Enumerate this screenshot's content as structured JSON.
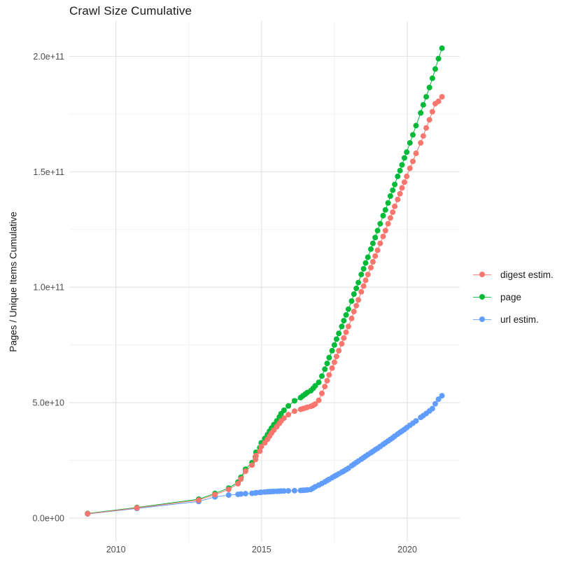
{
  "figure": {
    "title": "Crawl Size Cumulative",
    "y_axis_title": "Pages / Unique Items Cumulative",
    "x_tick_labels": [
      "2010",
      "2015",
      "2020"
    ],
    "y_tick_labels": [
      "0.0e+00",
      "5.0e+10",
      "1.0e+11",
      "1.5e+11",
      "2.0e+11"
    ]
  },
  "chart_data": {
    "type": "scatter",
    "connected": true,
    "title": "Crawl Size Cumulative",
    "xlabel": "",
    "ylabel": "Pages / Unique Items Cumulative",
    "x_unit": "crawl date (decimal year)",
    "value_unit": "cumulative items in billions (1e9)",
    "xlim": [
      2008.4,
      2021.8
    ],
    "ylim": [
      0,
      210000000000.0
    ],
    "x_ticks_major": [
      2010,
      2015,
      2020
    ],
    "x_ticks_minor": [
      2012.5,
      2017.5
    ],
    "y_ticks_major_billions": [
      0,
      50,
      100,
      150,
      200
    ],
    "y_ticks_minor_billions": [
      25,
      75,
      125,
      175
    ],
    "grid": true,
    "legend_position": "right",
    "series": [
      {
        "name": "digest estim.",
        "color": "#F8766D",
        "points": [
          [
            2009.03,
            1.9
          ],
          [
            2010.72,
            4.4
          ],
          [
            2012.84,
            7.8
          ],
          [
            2013.4,
            10.2
          ],
          [
            2013.87,
            12.4
          ],
          [
            2014.19,
            14.9
          ],
          [
            2014.29,
            16.9
          ],
          [
            2014.45,
            20.3
          ],
          [
            2014.67,
            23.0
          ],
          [
            2014.79,
            25.4
          ],
          [
            2014.81,
            27.1
          ],
          [
            2014.94,
            29.0
          ],
          [
            2014.99,
            30.9
          ],
          [
            2015.11,
            32.6
          ],
          [
            2015.2,
            34.1
          ],
          [
            2015.27,
            35.5
          ],
          [
            2015.34,
            36.8
          ],
          [
            2015.42,
            38.1
          ],
          [
            2015.52,
            39.6
          ],
          [
            2015.61,
            41.0
          ],
          [
            2015.67,
            42.1
          ],
          [
            2015.77,
            43.3
          ],
          [
            2015.92,
            44.8
          ],
          [
            2016.13,
            46.3
          ],
          [
            2016.34,
            47.1
          ],
          [
            2016.42,
            47.4
          ],
          [
            2016.5,
            47.7
          ],
          [
            2016.57,
            48.0
          ],
          [
            2016.69,
            48.4
          ],
          [
            2016.77,
            48.8
          ],
          [
            2016.84,
            49.4
          ],
          [
            2016.96,
            51.0
          ],
          [
            2017.07,
            54.0
          ],
          [
            2017.17,
            57.0
          ],
          [
            2017.25,
            59.5
          ],
          [
            2017.32,
            62.0
          ],
          [
            2017.42,
            65.0
          ],
          [
            2017.5,
            67.5
          ],
          [
            2017.57,
            70.0
          ],
          [
            2017.65,
            72.5
          ],
          [
            2017.75,
            75.5
          ],
          [
            2017.82,
            78.0
          ],
          [
            2017.9,
            80.5
          ],
          [
            2017.98,
            83.0
          ],
          [
            2018.09,
            86.5
          ],
          [
            2018.17,
            89.5
          ],
          [
            2018.25,
            92.0
          ],
          [
            2018.32,
            94.5
          ],
          [
            2018.42,
            98.0
          ],
          [
            2018.5,
            100.5
          ],
          [
            2018.57,
            103.0
          ],
          [
            2018.65,
            105.5
          ],
          [
            2018.75,
            108.5
          ],
          [
            2018.82,
            111.0
          ],
          [
            2018.9,
            113.5
          ],
          [
            2018.98,
            116.0
          ],
          [
            2019.07,
            119.0
          ],
          [
            2019.17,
            122.0
          ],
          [
            2019.25,
            124.5
          ],
          [
            2019.34,
            127.5
          ],
          [
            2019.42,
            130.0
          ],
          [
            2019.5,
            132.5
          ],
          [
            2019.57,
            135.0
          ],
          [
            2019.67,
            138.0
          ],
          [
            2019.75,
            140.5
          ],
          [
            2019.82,
            143.0
          ],
          [
            2019.9,
            145.5
          ],
          [
            2019.98,
            148.0
          ],
          [
            2020.09,
            151.5
          ],
          [
            2020.19,
            154.5
          ],
          [
            2020.3,
            158.0
          ],
          [
            2020.46,
            162.5
          ],
          [
            2020.55,
            165.5
          ],
          [
            2020.65,
            169.0
          ],
          [
            2020.76,
            172.5
          ],
          [
            2020.86,
            176.0
          ],
          [
            2020.96,
            179.5
          ],
          [
            2021.07,
            180.5
          ],
          [
            2021.19,
            182.5
          ]
        ]
      },
      {
        "name": "page",
        "color": "#00BA38",
        "points": [
          [
            2009.03,
            2.0
          ],
          [
            2010.72,
            4.6
          ],
          [
            2012.84,
            8.2
          ],
          [
            2013.4,
            10.7
          ],
          [
            2013.87,
            13.0
          ],
          [
            2014.19,
            15.6
          ],
          [
            2014.29,
            17.7
          ],
          [
            2014.45,
            21.2
          ],
          [
            2014.67,
            24.0
          ],
          [
            2014.79,
            26.6
          ],
          [
            2014.81,
            28.5
          ],
          [
            2014.94,
            30.5
          ],
          [
            2014.99,
            32.6
          ],
          [
            2015.11,
            34.5
          ],
          [
            2015.2,
            36.1
          ],
          [
            2015.27,
            37.6
          ],
          [
            2015.34,
            39.0
          ],
          [
            2015.42,
            40.5
          ],
          [
            2015.52,
            42.1
          ],
          [
            2015.61,
            43.8
          ],
          [
            2015.67,
            45.2
          ],
          [
            2015.77,
            46.7
          ],
          [
            2015.92,
            48.6
          ],
          [
            2016.13,
            50.8
          ],
          [
            2016.34,
            52.2
          ],
          [
            2016.42,
            53.0
          ],
          [
            2016.5,
            53.7
          ],
          [
            2016.57,
            54.4
          ],
          [
            2016.69,
            55.2
          ],
          [
            2016.77,
            56.2
          ],
          [
            2016.84,
            57.3
          ],
          [
            2016.96,
            58.8
          ],
          [
            2017.07,
            61.5
          ],
          [
            2017.17,
            64.5
          ],
          [
            2017.25,
            67.0
          ],
          [
            2017.32,
            69.5
          ],
          [
            2017.42,
            72.5
          ],
          [
            2017.5,
            75.0
          ],
          [
            2017.57,
            77.5
          ],
          [
            2017.65,
            80.0
          ],
          [
            2017.75,
            83.0
          ],
          [
            2017.82,
            85.5
          ],
          [
            2017.9,
            88.0
          ],
          [
            2017.98,
            90.5
          ],
          [
            2018.09,
            94.0
          ],
          [
            2018.17,
            97.0
          ],
          [
            2018.25,
            99.5
          ],
          [
            2018.32,
            102.0
          ],
          [
            2018.42,
            105.5
          ],
          [
            2018.5,
            108.0
          ],
          [
            2018.57,
            110.5
          ],
          [
            2018.65,
            113.0
          ],
          [
            2018.75,
            116.5
          ],
          [
            2018.82,
            119.0
          ],
          [
            2018.9,
            121.5
          ],
          [
            2018.98,
            124.5
          ],
          [
            2019.07,
            127.5
          ],
          [
            2019.17,
            131.0
          ],
          [
            2019.25,
            133.5
          ],
          [
            2019.34,
            136.5
          ],
          [
            2019.42,
            139.5
          ],
          [
            2019.5,
            142.0
          ],
          [
            2019.57,
            144.5
          ],
          [
            2019.67,
            148.0
          ],
          [
            2019.75,
            150.5
          ],
          [
            2019.82,
            153.0
          ],
          [
            2019.9,
            156.0
          ],
          [
            2019.98,
            158.5
          ],
          [
            2020.09,
            162.5
          ],
          [
            2020.19,
            166.0
          ],
          [
            2020.3,
            170.0
          ],
          [
            2020.46,
            175.5
          ],
          [
            2020.55,
            179.0
          ],
          [
            2020.65,
            182.5
          ],
          [
            2020.76,
            186.5
          ],
          [
            2020.86,
            190.5
          ],
          [
            2020.96,
            194.5
          ],
          [
            2021.07,
            199.0
          ],
          [
            2021.19,
            203.5
          ]
        ]
      },
      {
        "name": "url estim.",
        "color": "#619CFF",
        "points": [
          [
            2009.03,
            1.8
          ],
          [
            2010.72,
            4.2
          ],
          [
            2012.84,
            7.2
          ],
          [
            2013.4,
            9.2
          ],
          [
            2013.87,
            10.0
          ],
          [
            2014.19,
            10.3
          ],
          [
            2014.29,
            10.45
          ],
          [
            2014.45,
            10.6
          ],
          [
            2014.67,
            10.75
          ],
          [
            2014.79,
            10.9
          ],
          [
            2014.81,
            11.0
          ],
          [
            2014.94,
            11.1
          ],
          [
            2014.99,
            11.2
          ],
          [
            2015.11,
            11.3
          ],
          [
            2015.2,
            11.4
          ],
          [
            2015.27,
            11.45
          ],
          [
            2015.34,
            11.5
          ],
          [
            2015.42,
            11.55
          ],
          [
            2015.52,
            11.6
          ],
          [
            2015.61,
            11.65
          ],
          [
            2015.67,
            11.7
          ],
          [
            2015.77,
            11.75
          ],
          [
            2015.92,
            11.8
          ],
          [
            2016.13,
            11.9
          ],
          [
            2016.34,
            12.0
          ],
          [
            2016.42,
            12.05
          ],
          [
            2016.5,
            12.1
          ],
          [
            2016.57,
            12.2
          ],
          [
            2016.69,
            12.4
          ],
          [
            2016.77,
            13.0
          ],
          [
            2016.84,
            13.6
          ],
          [
            2016.96,
            14.3
          ],
          [
            2017.07,
            15.0
          ],
          [
            2017.17,
            15.7
          ],
          [
            2017.25,
            16.3
          ],
          [
            2017.32,
            16.8
          ],
          [
            2017.42,
            17.5
          ],
          [
            2017.5,
            18.1
          ],
          [
            2017.57,
            18.6
          ],
          [
            2017.65,
            19.2
          ],
          [
            2017.75,
            19.9
          ],
          [
            2017.82,
            20.4
          ],
          [
            2017.9,
            21.0
          ],
          [
            2017.98,
            21.6
          ],
          [
            2018.09,
            22.7
          ],
          [
            2018.17,
            23.4
          ],
          [
            2018.25,
            24.1
          ],
          [
            2018.32,
            24.7
          ],
          [
            2018.42,
            25.5
          ],
          [
            2018.5,
            26.2
          ],
          [
            2018.57,
            26.8
          ],
          [
            2018.65,
            27.5
          ],
          [
            2018.75,
            28.3
          ],
          [
            2018.82,
            28.9
          ],
          [
            2018.9,
            29.6
          ],
          [
            2018.98,
            30.2
          ],
          [
            2019.07,
            31.0
          ],
          [
            2019.17,
            31.9
          ],
          [
            2019.25,
            32.6
          ],
          [
            2019.34,
            33.4
          ],
          [
            2019.42,
            34.1
          ],
          [
            2019.5,
            34.8
          ],
          [
            2019.57,
            35.5
          ],
          [
            2019.67,
            36.4
          ],
          [
            2019.75,
            37.1
          ],
          [
            2019.82,
            37.7
          ],
          [
            2019.9,
            38.4
          ],
          [
            2019.98,
            39.2
          ],
          [
            2020.09,
            40.2
          ],
          [
            2020.19,
            41.1
          ],
          [
            2020.3,
            42.1
          ],
          [
            2020.46,
            43.6
          ],
          [
            2020.55,
            44.4
          ],
          [
            2020.65,
            45.3
          ],
          [
            2020.76,
            46.4
          ],
          [
            2020.86,
            47.4
          ],
          [
            2020.96,
            49.5
          ],
          [
            2021.07,
            51.5
          ],
          [
            2021.19,
            53.0
          ]
        ]
      }
    ]
  }
}
